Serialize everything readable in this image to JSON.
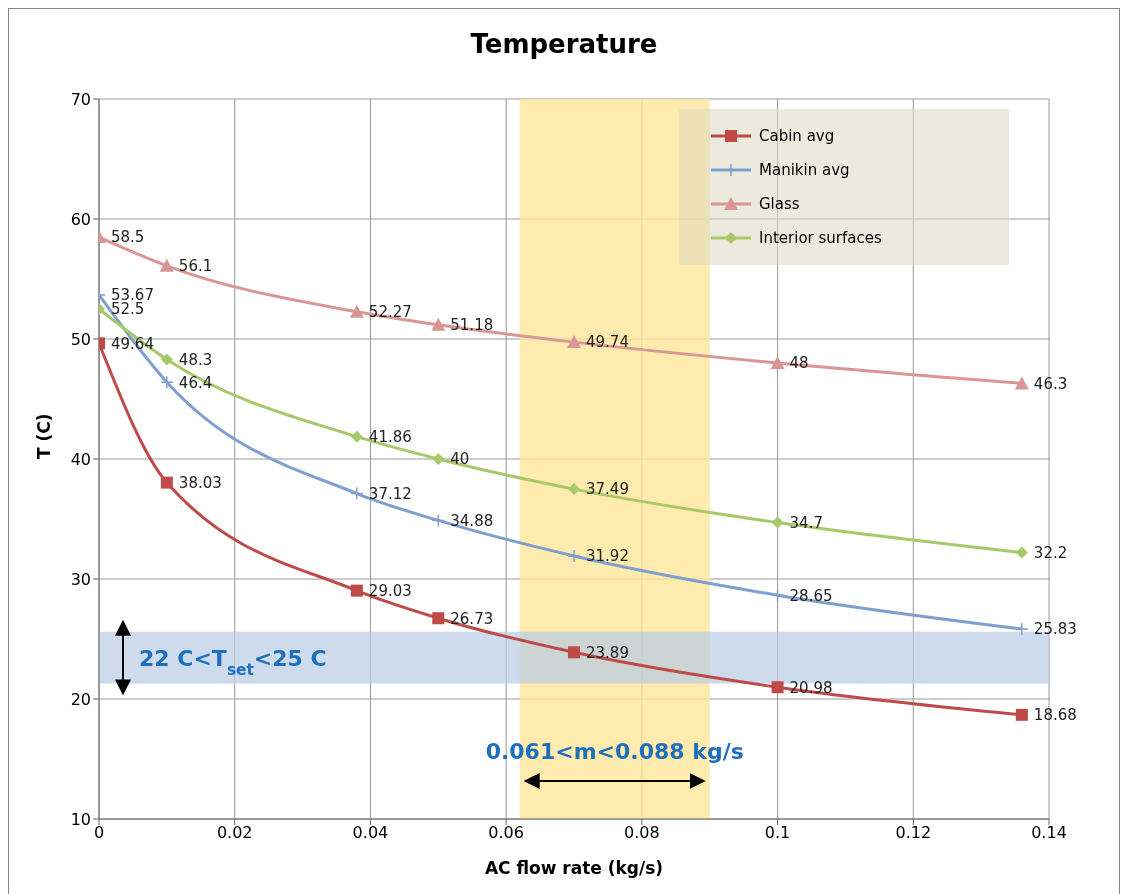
{
  "chart_data": {
    "type": "line",
    "title": "Temperature",
    "xlabel": "AC flow rate (kg/s)",
    "ylabel": "T (C)",
    "x": [
      0,
      0.01,
      0.038,
      0.05,
      0.07,
      0.1,
      0.136
    ],
    "series": [
      {
        "name": "Cabin avg",
        "color": "#be4b48",
        "marker": "square",
        "values": [
          49.64,
          38.03,
          29.03,
          26.73,
          23.89,
          20.98,
          18.68
        ]
      },
      {
        "name": "Manikin avg",
        "color": "#7f9fcf",
        "marker": "cross",
        "values": [
          53.67,
          46.4,
          37.12,
          34.88,
          31.92,
          28.65,
          25.83
        ]
      },
      {
        "name": "Glass",
        "color": "#d99694",
        "marker": "triangle",
        "values": [
          58.5,
          56.1,
          52.27,
          51.18,
          49.74,
          48,
          46.3
        ]
      },
      {
        "name": "Interior surfaces",
        "color": "#a9c86a",
        "marker": "diamond",
        "values": [
          52.5,
          48.3,
          41.86,
          40,
          37.49,
          34.7,
          32.2
        ]
      }
    ],
    "xlim": [
      0,
      0.14
    ],
    "xticks": [
      0,
      0.02,
      0.04,
      0.06,
      0.08,
      0.1,
      0.12,
      0.14
    ],
    "ylim": [
      10,
      70
    ],
    "yticks": [
      10,
      20,
      30,
      40,
      50,
      60,
      70
    ],
    "grid": true,
    "legend": "top right",
    "data_labels": true,
    "line_style": "solid",
    "bands": [
      {
        "axis": "x",
        "from": 0.062,
        "to": 0.09,
        "label": "0.061<m<0.088 kg/s",
        "color": "#ffe699"
      },
      {
        "axis": "y",
        "from": 21.3,
        "to": 25.6,
        "label": "22 C<T$_{set}$<25 C",
        "color": "#b8cce4"
      }
    ]
  }
}
